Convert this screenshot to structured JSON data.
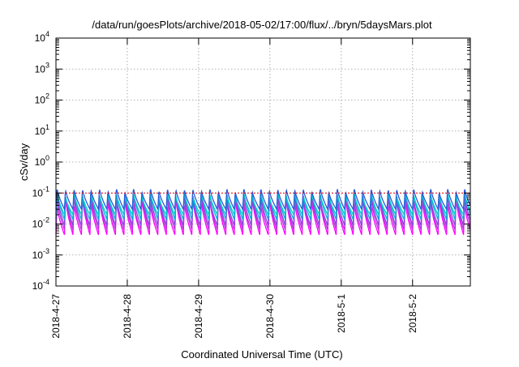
{
  "chart_data": {
    "type": "line",
    "title": "/data/run/goesPlots/archive/2018-05-02/17:00/flux/../bryn/5daysMars.plot",
    "xlabel": "Coordinated Universal Time (UTC)",
    "ylabel": "cSv/day",
    "yscale": "log",
    "ylim": [
      0.0001,
      10000
    ],
    "xlim_days": [
      0,
      5.81
    ],
    "x_ticks": [
      {
        "label": "2018-4-27",
        "day": 0
      },
      {
        "label": "2018-4-28",
        "day": 1
      },
      {
        "label": "2018-4-29",
        "day": 2
      },
      {
        "label": "2018-4-30",
        "day": 3
      },
      {
        "label": "2018-5-1",
        "day": 4
      },
      {
        "label": "2018-5-2",
        "day": 5
      }
    ],
    "y_ticks": [
      {
        "base": "10",
        "exp": "-4",
        "value": 0.0001
      },
      {
        "base": "10",
        "exp": "-3",
        "value": 0.001
      },
      {
        "base": "10",
        "exp": "-2",
        "value": 0.01
      },
      {
        "base": "10",
        "exp": "-1",
        "value": 0.1
      },
      {
        "base": "10",
        "exp": "0",
        "value": 1
      },
      {
        "base": "10",
        "exp": "1",
        "value": 10
      },
      {
        "base": "10",
        "exp": "2",
        "value": 100
      },
      {
        "base": "10",
        "exp": "3",
        "value": 1000
      },
      {
        "base": "10",
        "exp": "4",
        "value": 10000
      }
    ],
    "grid": true,
    "reference_line": {
      "value": 0.1,
      "color": "#ee0000"
    },
    "sawtooth": {
      "cycles_per_day": 8.4
    },
    "series": [
      {
        "color": "#ff00ff",
        "peak": 0.055,
        "trough": 0.0045
      },
      {
        "color": "#bb33dd",
        "peak": 0.07,
        "trough": 0.0065
      },
      {
        "color": "#8844dd",
        "peak": 0.085,
        "trough": 0.009
      },
      {
        "color": "#00b0d8",
        "peak": 0.1,
        "trough": 0.014
      },
      {
        "color": "#00cccc",
        "peak": 0.09,
        "trough": 0.02
      },
      {
        "color": "#2a5ad8",
        "peak": 0.13,
        "trough": 0.03
      }
    ]
  }
}
